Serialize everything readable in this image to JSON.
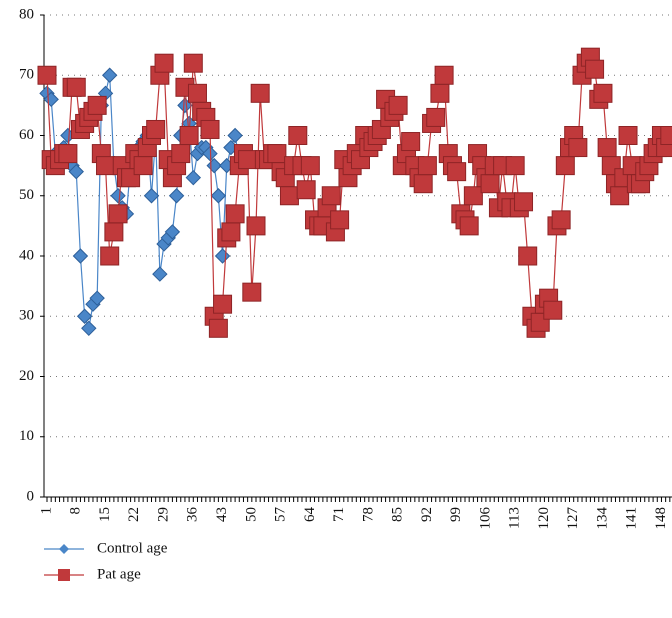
{
  "chart_data": {
    "type": "line",
    "categories": [
      "1",
      null,
      null,
      null,
      null,
      null,
      null,
      "8",
      null,
      null,
      null,
      null,
      null,
      null,
      "15",
      null,
      null,
      null,
      null,
      null,
      null,
      "22",
      null,
      null,
      null,
      null,
      null,
      null,
      "29",
      null,
      null,
      null,
      null,
      null,
      null,
      "36",
      null,
      null,
      null,
      null,
      null,
      null,
      "43",
      null,
      null,
      null,
      null,
      null,
      null,
      "50",
      null,
      null,
      null,
      null,
      null,
      null,
      "57",
      null,
      null,
      null,
      null,
      null,
      null,
      "64",
      null,
      null,
      null,
      null,
      null,
      null,
      "71",
      null,
      null,
      null,
      null,
      null,
      null,
      "78",
      null,
      null,
      null,
      null,
      null,
      null,
      "85",
      null,
      null,
      null,
      null,
      null,
      null,
      "92",
      null,
      null,
      null,
      null,
      null,
      null,
      "99",
      null,
      null,
      null,
      null,
      null,
      null,
      "106",
      null,
      null,
      null,
      null,
      null,
      null,
      "113",
      null,
      null,
      null,
      null,
      null,
      null,
      "120",
      null,
      null,
      null,
      null,
      null,
      null,
      "127",
      null,
      null,
      null,
      null,
      null,
      null,
      "134",
      null,
      null,
      null,
      null,
      null,
      null,
      "141",
      null,
      null,
      null,
      null,
      null,
      null,
      "148",
      null,
      null
    ],
    "series": [
      {
        "name": "Control age",
        "color": "#4a86c8",
        "marker": "diamond",
        "values": [
          67,
          66,
          57,
          57,
          58,
          60,
          55,
          54,
          40,
          30,
          28,
          32,
          33,
          65,
          67,
          70,
          55,
          50,
          48,
          47,
          55,
          57,
          58,
          59,
          60,
          50,
          60,
          37,
          42,
          43,
          44,
          50,
          60,
          65,
          62,
          53,
          57,
          58,
          58,
          57,
          55,
          50,
          40,
          55,
          58,
          60,
          56,
          55,
          null,
          null,
          null,
          null,
          null,
          null,
          null,
          null,
          null,
          null,
          null,
          null,
          null,
          null,
          null,
          null,
          null,
          null,
          null,
          null,
          null,
          null,
          null,
          null,
          null,
          null,
          null,
          null,
          null,
          null,
          null,
          null,
          null,
          null,
          null,
          null,
          null,
          null,
          null,
          null,
          null,
          null,
          null,
          null,
          null,
          null,
          null,
          null,
          null,
          null,
          null,
          null,
          null,
          null,
          null,
          null,
          null,
          null,
          null,
          null,
          null,
          null,
          null,
          null,
          null,
          null,
          null,
          null,
          null,
          null,
          null,
          null,
          null,
          null,
          null,
          null,
          null,
          null,
          null,
          null,
          null,
          null,
          null,
          null,
          null,
          null,
          null,
          null,
          null,
          null,
          null,
          null,
          null,
          null,
          null,
          null,
          null,
          null,
          null,
          null,
          null,
          null
        ]
      },
      {
        "name": "Pat age",
        "color": "#c0393b",
        "marker": "square",
        "values": [
          70,
          56,
          55,
          56,
          57,
          57,
          68,
          68,
          61,
          62,
          63,
          64,
          65,
          57,
          55,
          40,
          44,
          47,
          55,
          53,
          53,
          57,
          56,
          55,
          58,
          60,
          61,
          70,
          72,
          56,
          53,
          55,
          57,
          68,
          60,
          72,
          67,
          64,
          63,
          61,
          30,
          28,
          32,
          43,
          44,
          47,
          55,
          57,
          56,
          34,
          45,
          67,
          56,
          56,
          57,
          57,
          54,
          53,
          50,
          55,
          60,
          55,
          51,
          55,
          46,
          45,
          45,
          48,
          50,
          44,
          46,
          56,
          53,
          55,
          57,
          56,
          60,
          58,
          59,
          60,
          61,
          66,
          63,
          64,
          65,
          55,
          57,
          59,
          55,
          53,
          52,
          55,
          62,
          63,
          67,
          70,
          57,
          55,
          54,
          47,
          46,
          45,
          50,
          57,
          55,
          53,
          52,
          55,
          48,
          55,
          49,
          48,
          55,
          48,
          49,
          40,
          30,
          28,
          29,
          32,
          33,
          31,
          45,
          46,
          55,
          58,
          60,
          58,
          70,
          72,
          73,
          71,
          66,
          67,
          58,
          55,
          52,
          50,
          53,
          60,
          55,
          52,
          52,
          54,
          55,
          57,
          58,
          60,
          58,
          60
        ]
      }
    ],
    "ylim": [
      0,
      80
    ],
    "yticks": [
      0,
      10,
      20,
      30,
      40,
      50,
      60,
      70,
      80
    ],
    "grid": true
  }
}
